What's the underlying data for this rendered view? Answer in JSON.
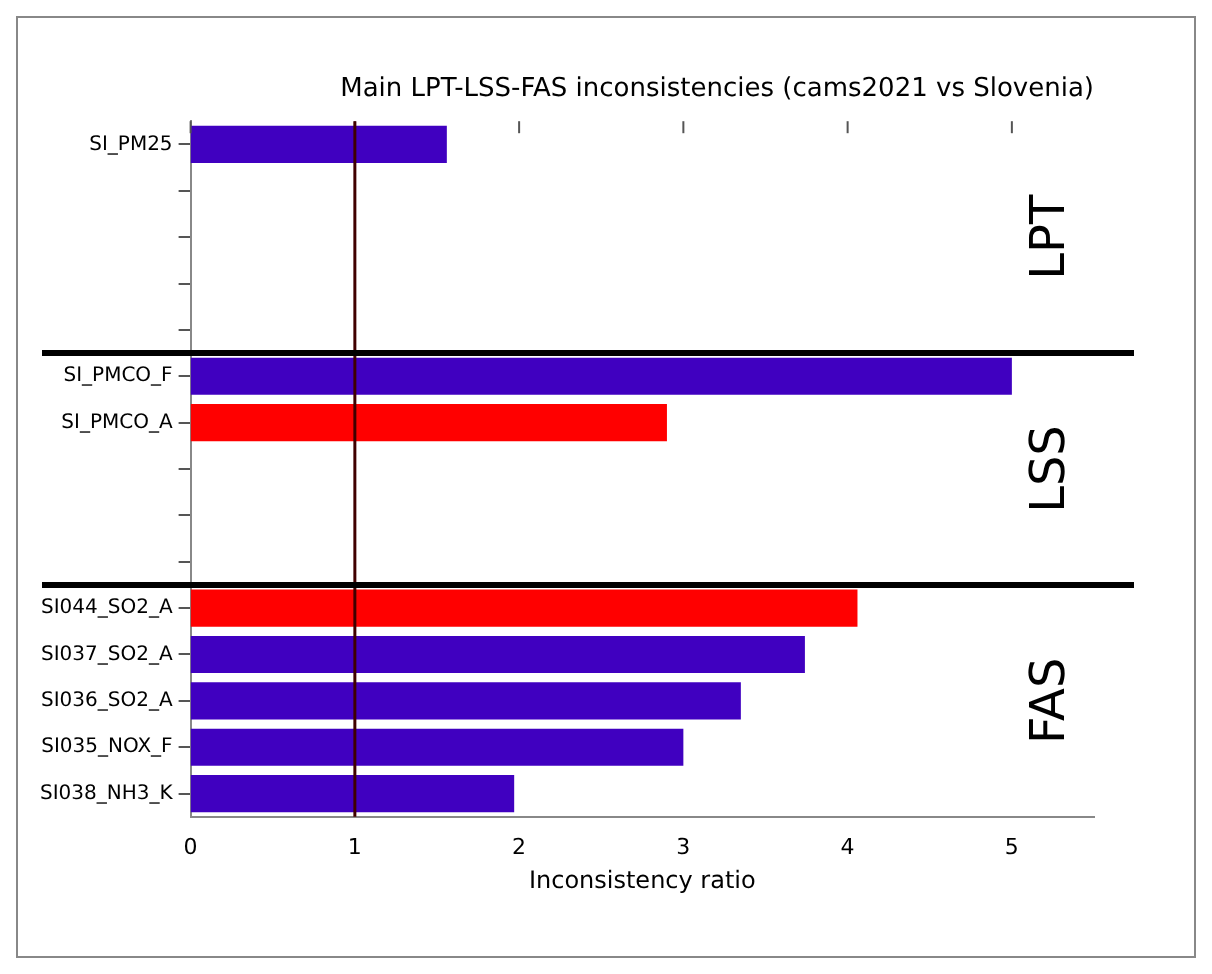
{
  "chart_data": {
    "type": "bar",
    "orientation": "horizontal",
    "title": "Main LPT-LSS-FAS inconsistencies (cams2021 vs Slovenia)",
    "xlabel": "Inconsistency ratio",
    "categories": [
      "SI_PM25",
      null,
      null,
      null,
      null,
      "SI_PMCO_F",
      "SI_PMCO_A",
      null,
      null,
      null,
      "SI044_SO2_A",
      "SI037_SO2_A",
      "SI036_SO2_A",
      "SI035_NOX_F",
      "SI038_NH3_K"
    ],
    "values": [
      1.56,
      null,
      null,
      null,
      null,
      5.0,
      2.9,
      null,
      null,
      null,
      4.06,
      3.74,
      3.35,
      3.0,
      1.97
    ],
    "colors": [
      "#4000c0",
      null,
      null,
      null,
      null,
      "#4000c0",
      "#ff0000",
      null,
      null,
      null,
      "#ff0000",
      "#4000c0",
      "#4000c0",
      "#4000c0",
      "#4000c0"
    ],
    "xlim": [
      0,
      5.5
    ],
    "xticks": [
      0,
      1,
      2,
      3,
      4,
      5
    ],
    "ref_lines": [
      {
        "axis": "x",
        "value": 1,
        "color": "#400000"
      }
    ],
    "annotations": [
      "LPT",
      "LSS",
      "FAS"
    ],
    "grid": false,
    "legend": false
  }
}
